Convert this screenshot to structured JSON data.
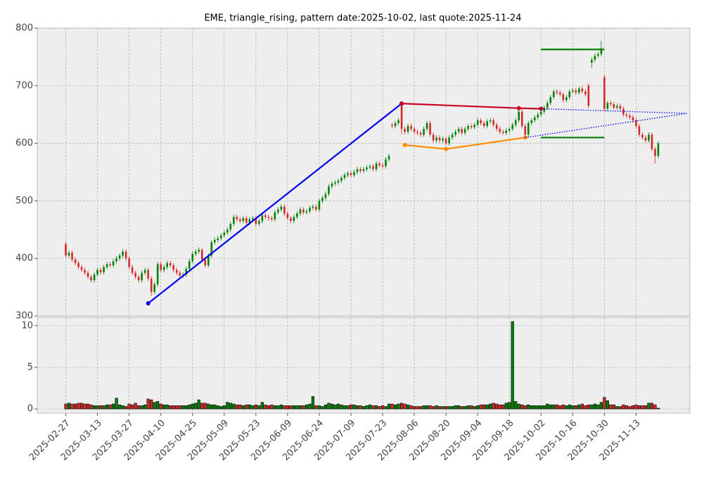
{
  "chart_data": {
    "type": "candlestick",
    "title": "EME, triangle_rising, pattern date:2025-10-02, last quote:2025-11-24",
    "categories": [
      "2025-02-27",
      null,
      null,
      null,
      null,
      null,
      null,
      null,
      null,
      null,
      "2025-03-13",
      null,
      null,
      null,
      null,
      null,
      null,
      null,
      null,
      null,
      "2025-03-27",
      null,
      null,
      null,
      null,
      null,
      null,
      null,
      null,
      null,
      "2025-04-10",
      null,
      null,
      null,
      null,
      null,
      null,
      null,
      null,
      null,
      "2025-04-25",
      null,
      null,
      null,
      null,
      null,
      null,
      null,
      null,
      null,
      "2025-05-09",
      null,
      null,
      null,
      null,
      null,
      null,
      null,
      null,
      null,
      "2025-05-23",
      null,
      null,
      null,
      null,
      null,
      null,
      null,
      null,
      null,
      "2025-06-09",
      null,
      null,
      null,
      null,
      null,
      null,
      null,
      null,
      null,
      "2025-06-24",
      null,
      null,
      null,
      null,
      null,
      null,
      null,
      null,
      null,
      "2025-07-09",
      null,
      null,
      null,
      null,
      null,
      null,
      null,
      null,
      null,
      "2025-07-23",
      null,
      null,
      null,
      null,
      null,
      null,
      null,
      null,
      null,
      "2025-08-06",
      null,
      null,
      null,
      null,
      null,
      null,
      null,
      null,
      null,
      "2025-08-20",
      null,
      null,
      null,
      null,
      null,
      null,
      null,
      null,
      null,
      "2025-09-04",
      null,
      null,
      null,
      null,
      null,
      null,
      null,
      null,
      null,
      "2025-09-18",
      null,
      null,
      null,
      null,
      null,
      null,
      null,
      null,
      null,
      "2025-10-02",
      null,
      null,
      null,
      null,
      null,
      null,
      null,
      null,
      null,
      "2025-10-16",
      null,
      null,
      null,
      null,
      null,
      null,
      null,
      null,
      null,
      "2025-10-30",
      null,
      null,
      null,
      null,
      null,
      null,
      null,
      null,
      null,
      "2025-11-13",
      null,
      null,
      null,
      null,
      null,
      null,
      null
    ],
    "open": [
      425,
      405,
      410,
      398,
      392,
      385,
      380,
      375,
      368,
      362,
      372,
      380,
      376,
      385,
      390,
      388,
      395,
      400,
      405,
      412,
      400,
      385,
      375,
      368,
      362,
      375,
      380,
      365,
      342,
      355,
      390,
      380,
      385,
      392,
      388,
      380,
      375,
      370,
      372,
      382,
      395,
      408,
      412,
      415,
      398,
      388,
      405,
      428,
      432,
      435,
      440,
      445,
      450,
      460,
      472,
      468,
      465,
      470,
      462,
      468,
      470,
      460,
      465,
      475,
      472,
      470,
      468,
      480,
      485,
      490,
      478,
      470,
      465,
      472,
      478,
      485,
      480,
      482,
      488,
      490,
      485,
      500,
      505,
      512,
      525,
      530,
      532,
      535,
      540,
      545,
      548,
      545,
      550,
      555,
      552,
      555,
      558,
      560,
      555,
      565,
      562,
      560,
      572,
      632,
      630,
      635,
      668,
      625,
      620,
      630,
      625,
      620,
      618,
      615,
      625,
      635,
      615,
      605,
      610,
      605,
      608,
      600,
      610,
      615,
      620,
      625,
      618,
      625,
      630,
      628,
      632,
      640,
      635,
      630,
      638,
      640,
      632,
      625,
      620,
      618,
      622,
      625,
      632,
      640,
      655,
      630,
      615,
      635,
      640,
      645,
      650,
      655,
      662,
      670,
      680,
      690,
      688,
      685,
      675,
      680,
      690,
      692,
      688,
      695,
      690,
      700,
      740,
      745,
      752,
      755,
      715,
      660,
      670,
      668,
      662,
      665,
      660,
      650,
      648,
      645,
      640,
      630,
      615,
      610,
      605,
      615,
      590,
      578
    ],
    "high": [
      429,
      414,
      414,
      402,
      396,
      389,
      384,
      379,
      372,
      376,
      384,
      384,
      389,
      394,
      394,
      399,
      404,
      409,
      416,
      416,
      404,
      389,
      379,
      372,
      379,
      384,
      384,
      369,
      359,
      394,
      394,
      389,
      396,
      396,
      392,
      384,
      379,
      376,
      386,
      399,
      412,
      416,
      419,
      419,
      402,
      409,
      432,
      436,
      439,
      444,
      449,
      454,
      464,
      476,
      476,
      472,
      474,
      474,
      472,
      474,
      474,
      469,
      479,
      479,
      476,
      474,
      484,
      489,
      494,
      494,
      482,
      474,
      476,
      482,
      489,
      489,
      486,
      492,
      494,
      494,
      504,
      509,
      516,
      529,
      534,
      536,
      539,
      544,
      549,
      552,
      552,
      554,
      559,
      559,
      559,
      562,
      564,
      564,
      569,
      569,
      566,
      576,
      582,
      636,
      639,
      644,
      672,
      629,
      634,
      634,
      629,
      624,
      622,
      629,
      639,
      639,
      619,
      614,
      614,
      612,
      612,
      614,
      619,
      624,
      629,
      629,
      629,
      634,
      634,
      636,
      644,
      644,
      639,
      642,
      644,
      644,
      636,
      629,
      624,
      626,
      629,
      636,
      644,
      659,
      659,
      634,
      639,
      644,
      649,
      654,
      659,
      666,
      674,
      684,
      694,
      694,
      692,
      689,
      684,
      694,
      696,
      696,
      699,
      699,
      694,
      704,
      749,
      756,
      759,
      778,
      719,
      674,
      674,
      672,
      669,
      669,
      664,
      654,
      652,
      649,
      644,
      634,
      619,
      614,
      619,
      619,
      594,
      604
    ],
    "low": [
      401,
      401,
      394,
      388,
      381,
      376,
      371,
      364,
      358,
      358,
      368,
      372,
      372,
      381,
      384,
      384,
      391,
      396,
      401,
      396,
      381,
      371,
      364,
      358,
      358,
      371,
      361,
      335,
      338,
      351,
      376,
      376,
      381,
      384,
      376,
      371,
      366,
      366,
      368,
      378,
      391,
      404,
      408,
      394,
      384,
      384,
      401,
      424,
      428,
      431,
      436,
      441,
      446,
      456,
      464,
      461,
      461,
      458,
      458,
      464,
      456,
      456,
      461,
      468,
      466,
      464,
      464,
      476,
      481,
      474,
      466,
      461,
      461,
      468,
      474,
      476,
      476,
      478,
      484,
      481,
      481,
      496,
      501,
      508,
      521,
      526,
      528,
      531,
      536,
      541,
      541,
      541,
      546,
      548,
      548,
      551,
      554,
      551,
      551,
      558,
      556,
      556,
      568,
      626,
      626,
      631,
      615,
      616,
      616,
      621,
      616,
      614,
      611,
      611,
      621,
      611,
      601,
      601,
      601,
      601,
      596,
      596,
      606,
      611,
      616,
      614,
      614,
      621,
      624,
      624,
      628,
      631,
      626,
      626,
      634,
      628,
      621,
      616,
      614,
      614,
      618,
      621,
      628,
      636,
      626,
      611,
      611,
      631,
      636,
      641,
      646,
      651,
      658,
      666,
      676,
      684,
      681,
      671,
      671,
      676,
      686,
      684,
      684,
      686,
      681,
      661,
      731,
      741,
      748,
      751,
      656,
      656,
      664,
      658,
      658,
      656,
      646,
      644,
      641,
      636,
      626,
      611,
      606,
      601,
      601,
      586,
      565,
      574
    ],
    "close": [
      405,
      410,
      398,
      392,
      385,
      380,
      375,
      368,
      362,
      372,
      380,
      376,
      385,
      390,
      388,
      395,
      400,
      405,
      412,
      400,
      385,
      375,
      368,
      362,
      375,
      380,
      365,
      342,
      355,
      390,
      380,
      385,
      392,
      388,
      380,
      375,
      370,
      372,
      382,
      395,
      408,
      412,
      415,
      398,
      388,
      405,
      428,
      432,
      435,
      440,
      445,
      450,
      460,
      472,
      468,
      465,
      470,
      462,
      468,
      470,
      460,
      465,
      475,
      472,
      470,
      468,
      480,
      485,
      490,
      478,
      470,
      465,
      472,
      478,
      485,
      480,
      482,
      488,
      490,
      485,
      500,
      505,
      512,
      525,
      530,
      532,
      535,
      540,
      545,
      548,
      545,
      550,
      555,
      552,
      555,
      558,
      560,
      555,
      565,
      562,
      560,
      572,
      578,
      630,
      635,
      640,
      625,
      620,
      630,
      625,
      620,
      618,
      615,
      625,
      635,
      615,
      605,
      610,
      605,
      608,
      600,
      610,
      615,
      620,
      625,
      618,
      625,
      630,
      628,
      632,
      640,
      635,
      630,
      638,
      640,
      632,
      625,
      620,
      618,
      622,
      625,
      632,
      640,
      655,
      630,
      615,
      635,
      640,
      645,
      650,
      655,
      662,
      670,
      680,
      690,
      688,
      685,
      675,
      680,
      690,
      692,
      688,
      695,
      690,
      685,
      665,
      745,
      752,
      755,
      765,
      660,
      670,
      668,
      662,
      665,
      660,
      650,
      648,
      645,
      640,
      630,
      615,
      610,
      605,
      615,
      590,
      578,
      600
    ],
    "volume": [
      0.6,
      0.7,
      0.6,
      0.6,
      0.7,
      0.7,
      0.6,
      0.6,
      0.5,
      0.4,
      0.4,
      0.4,
      0.4,
      0.5,
      0.5,
      0.6,
      1.3,
      0.5,
      0.4,
      0.3,
      0.6,
      0.5,
      0.7,
      0.4,
      0.4,
      0.5,
      1.2,
      1.1,
      0.8,
      0.9,
      0.6,
      0.5,
      0.5,
      0.4,
      0.4,
      0.4,
      0.4,
      0.4,
      0.4,
      0.5,
      0.6,
      0.7,
      1.1,
      0.7,
      0.7,
      0.6,
      0.5,
      0.5,
      0.4,
      0.3,
      0.4,
      0.8,
      0.7,
      0.6,
      0.5,
      0.5,
      0.4,
      0.5,
      0.5,
      0.4,
      0.5,
      0.4,
      0.8,
      0.5,
      0.4,
      0.5,
      0.4,
      0.4,
      0.5,
      0.4,
      0.4,
      0.4,
      0.4,
      0.4,
      0.4,
      0.4,
      0.5,
      0.6,
      1.5,
      0.4,
      0.4,
      0.3,
      0.5,
      0.7,
      0.6,
      0.5,
      0.6,
      0.5,
      0.4,
      0.4,
      0.5,
      0.5,
      0.4,
      0.4,
      0.3,
      0.4,
      0.5,
      0.4,
      0.4,
      0.3,
      0.4,
      0.3,
      0.6,
      0.6,
      0.5,
      0.6,
      0.7,
      0.6,
      0.5,
      0.4,
      0.3,
      0.3,
      0.3,
      0.4,
      0.4,
      0.4,
      0.3,
      0.4,
      0.3,
      0.3,
      0.3,
      0.3,
      0.3,
      0.4,
      0.4,
      0.3,
      0.3,
      0.4,
      0.4,
      0.3,
      0.4,
      0.5,
      0.5,
      0.5,
      0.6,
      0.7,
      0.6,
      0.5,
      0.5,
      0.7,
      0.8,
      10.5,
      0.9,
      0.6,
      0.5,
      0.4,
      0.5,
      0.4,
      0.4,
      0.4,
      0.4,
      0.4,
      0.6,
      0.5,
      0.5,
      0.5,
      0.4,
      0.5,
      0.4,
      0.5,
      0.4,
      0.4,
      0.5,
      0.6,
      0.4,
      0.5,
      0.5,
      0.6,
      0.5,
      0.8,
      1.4,
      1.0,
      0.5,
      0.5,
      0.3,
      0.3,
      0.5,
      0.4,
      0.3,
      0.4,
      0.5,
      0.4,
      0.4,
      0.4,
      0.7,
      0.7,
      0.5,
      0.1
    ],
    "up_color": "#008000",
    "down_color": "#d62728",
    "ylim": [
      300,
      800
    ],
    "yticks": [
      300,
      400,
      500,
      600,
      700,
      800
    ],
    "y2lim": [
      -0.5,
      11
    ],
    "y2ticks": [
      0,
      5,
      10
    ],
    "grid": true,
    "lines": [
      {
        "color": "#0000ee",
        "style": "solid",
        "markers": true,
        "points": [
          [
            26,
            322
          ],
          [
            106,
            669
          ]
        ]
      },
      {
        "color": "#cc0022",
        "style": "solid",
        "markers": true,
        "points": [
          [
            106,
            669
          ],
          [
            143,
            661
          ],
          [
            150,
            660
          ]
        ]
      },
      {
        "color": "#ff8c00",
        "style": "solid",
        "markers": true,
        "points": [
          [
            107,
            597
          ],
          [
            120,
            590
          ],
          [
            145,
            610
          ]
        ]
      },
      {
        "color": "#0000ee",
        "style": "dotted",
        "markers": false,
        "points": [
          [
            150,
            660
          ],
          [
            196,
            652
          ]
        ]
      },
      {
        "color": "#0000ee",
        "style": "dotted",
        "markers": false,
        "points": [
          [
            145,
            610
          ],
          [
            196,
            652
          ]
        ]
      },
      {
        "color": "#008000",
        "style": "solid",
        "markers": false,
        "points": [
          [
            150,
            763
          ],
          [
            170,
            763
          ]
        ]
      },
      {
        "color": "#008000",
        "style": "solid",
        "markers": false,
        "points": [
          [
            150,
            610
          ],
          [
            170,
            610
          ]
        ]
      }
    ]
  }
}
